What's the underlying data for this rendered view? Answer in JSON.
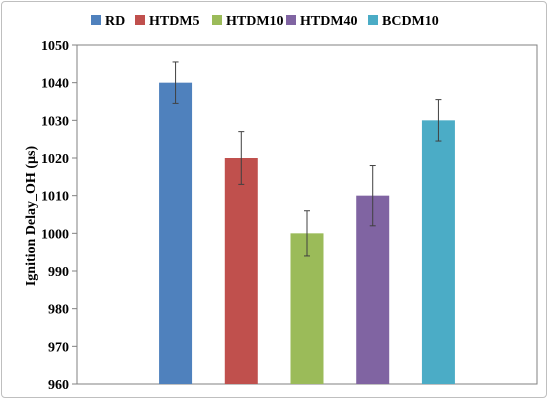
{
  "chart_data": {
    "type": "bar",
    "title": "",
    "xlabel": "",
    "ylabel": "Ignition Delay_OH (µs)",
    "categories": [
      "RD",
      "HTDM5",
      "HTDM10",
      "HTDM40",
      "BCDM10"
    ],
    "values": [
      1040,
      1020,
      1000,
      1010,
      1030
    ],
    "error": [
      5.5,
      7,
      6,
      8,
      5.5
    ],
    "colors": [
      "#4f81bd",
      "#c0504d",
      "#9bbb59",
      "#8064a2",
      "#4bacc6"
    ],
    "ylim": [
      960,
      1050
    ],
    "yticks": [
      960,
      970,
      980,
      990,
      1000,
      1010,
      1020,
      1030,
      1040,
      1050
    ],
    "grid": false,
    "legend_position": "top"
  }
}
